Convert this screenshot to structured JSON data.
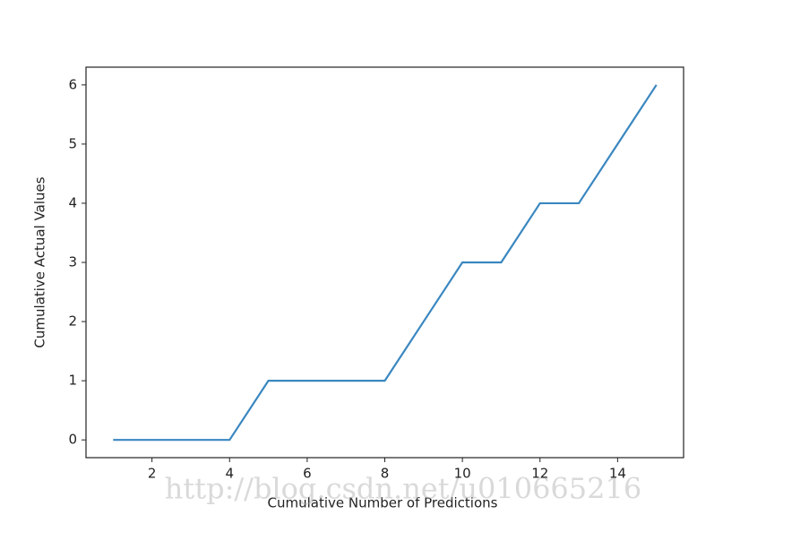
{
  "chart_data": {
    "type": "line",
    "x_label": "Cumulative Number of Predictions",
    "y_label": "Cumulative Actual Values",
    "watermark": "http://blog.csdn.net/u010665216",
    "x": [
      1,
      2,
      3,
      4,
      5,
      6,
      7,
      8,
      9,
      10,
      11,
      12,
      13,
      14,
      15
    ],
    "series": [
      {
        "color": "#3a87c0",
        "values": [
          0,
          0,
          0,
          0,
          1,
          1,
          1,
          1,
          2,
          3,
          3,
          4,
          4,
          5,
          6
        ]
      }
    ],
    "xlim": [
      0.3,
      15.7
    ],
    "xticks": [
      2,
      4,
      6,
      8,
      10,
      12,
      14
    ],
    "ylim": [
      -0.3,
      6.3
    ],
    "yticks": [
      0,
      1,
      2,
      3,
      4,
      5,
      6
    ],
    "grid": false
  }
}
